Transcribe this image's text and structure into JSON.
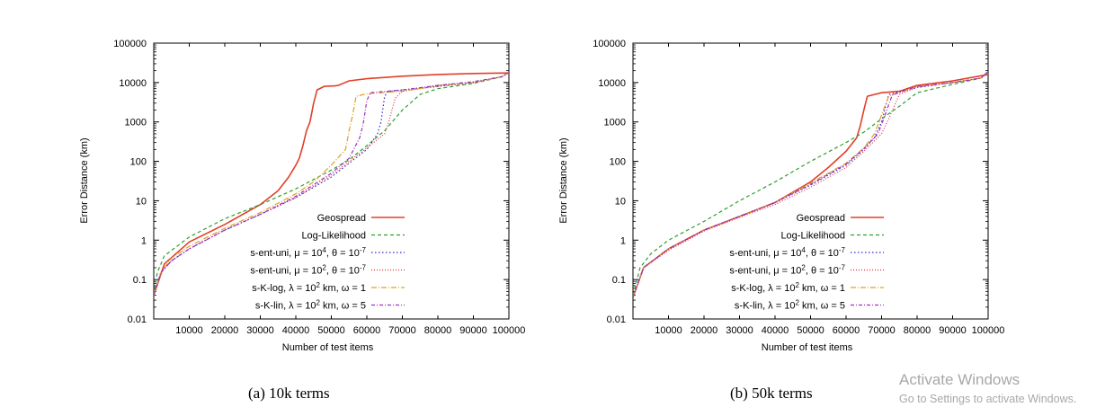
{
  "chart_data": [
    {
      "type": "line",
      "caption": "(a)  10k terms",
      "xlabel": "Number of test items",
      "ylabel": "Error Distance (km)",
      "xlim": [
        0,
        100000
      ],
      "ylim": [
        0.01,
        100000
      ],
      "y_scale": "log",
      "x_ticks": [
        "10000",
        "20000",
        "30000",
        "40000",
        "50000",
        "60000",
        "70000",
        "80000",
        "90000",
        "100000"
      ],
      "y_ticks": [
        "0.01",
        "0.1",
        "1",
        "10",
        "100",
        "1000",
        "10000",
        "100000"
      ],
      "legend_position": "bottom-right",
      "series": [
        {
          "name": "Geospread",
          "color": "#e0402a",
          "dash": "solid",
          "points": [
            [
              0,
              0.04
            ],
            [
              3000,
              0.25
            ],
            [
              10000,
              0.9
            ],
            [
              20000,
              2.5
            ],
            [
              30000,
              8
            ],
            [
              35000,
              18
            ],
            [
              38000,
              40
            ],
            [
              40000,
              80
            ],
            [
              41000,
              120
            ],
            [
              42000,
              250
            ],
            [
              43000,
              600
            ],
            [
              44000,
              1000
            ],
            [
              45000,
              3000
            ],
            [
              46000,
              6500
            ],
            [
              48000,
              8000
            ],
            [
              51000,
              8200
            ],
            [
              52000,
              8500
            ],
            [
              55000,
              11000
            ],
            [
              60000,
              12500
            ],
            [
              70000,
              14500
            ],
            [
              80000,
              16000
            ],
            [
              90000,
              17000
            ],
            [
              100000,
              17500
            ],
            [
              100000,
              18000
            ]
          ]
        },
        {
          "name": "Log-Likelihood",
          "color": "#2ca02c",
          "dash": "4,3",
          "points": [
            [
              0,
              0.04
            ],
            [
              1000,
              0.15
            ],
            [
              3000,
              0.4
            ],
            [
              10000,
              1.2
            ],
            [
              20000,
              3.5
            ],
            [
              30000,
              8
            ],
            [
              40000,
              20
            ],
            [
              50000,
              60
            ],
            [
              55000,
              110
            ],
            [
              60000,
              250
            ],
            [
              65000,
              600
            ],
            [
              70000,
              2000
            ],
            [
              75000,
              5000
            ],
            [
              80000,
              7000
            ],
            [
              90000,
              9500
            ],
            [
              98000,
              14000
            ],
            [
              100000,
              18000
            ]
          ]
        },
        {
          "name": "s-ent-uni, μ = 10^4,  θ = 10^-7",
          "color": "#2a2ad0",
          "dash": "1.5,2.5",
          "points": [
            [
              0,
              0.04
            ],
            [
              2000,
              0.15
            ],
            [
              5000,
              0.3
            ],
            [
              10000,
              0.6
            ],
            [
              20000,
              1.8
            ],
            [
              30000,
              4.5
            ],
            [
              40000,
              12
            ],
            [
              50000,
              40
            ],
            [
              55000,
              90
            ],
            [
              60000,
              200
            ],
            [
              63000,
              500
            ],
            [
              64000,
              1000
            ],
            [
              65000,
              4500
            ],
            [
              66000,
              6000
            ],
            [
              70000,
              6500
            ],
            [
              80000,
              8000
            ],
            [
              90000,
              10000
            ],
            [
              98000,
              14000
            ],
            [
              100000,
              18000
            ]
          ]
        },
        {
          "name": "s-ent-uni, μ = 10^2,  θ = 10^-7",
          "color": "#e03040",
          "dash": "1,2",
          "points": [
            [
              0,
              0.04
            ],
            [
              2000,
              0.15
            ],
            [
              5000,
              0.3
            ],
            [
              10000,
              0.6
            ],
            [
              20000,
              1.8
            ],
            [
              30000,
              4.5
            ],
            [
              40000,
              12
            ],
            [
              50000,
              45
            ],
            [
              55000,
              100
            ],
            [
              60000,
              220
            ],
            [
              65000,
              500
            ],
            [
              66000,
              900
            ],
            [
              68000,
              4000
            ],
            [
              70000,
              6000
            ],
            [
              80000,
              8000
            ],
            [
              90000,
              10000
            ],
            [
              98000,
              14000
            ],
            [
              100000,
              18000
            ]
          ]
        },
        {
          "name": "s-K-log, λ = 10^2 km, ω = 1",
          "color": "#e0a020",
          "dash": "6,2,1,2",
          "points": [
            [
              0,
              0.04
            ],
            [
              2000,
              0.15
            ],
            [
              5000,
              0.35
            ],
            [
              10000,
              0.7
            ],
            [
              20000,
              2
            ],
            [
              30000,
              5
            ],
            [
              40000,
              15
            ],
            [
              45000,
              30
            ],
            [
              50000,
              80
            ],
            [
              54000,
              200
            ],
            [
              55000,
              600
            ],
            [
              56000,
              1500
            ],
            [
              57000,
              4500
            ],
            [
              60000,
              5200
            ],
            [
              70000,
              6000
            ],
            [
              80000,
              8500
            ],
            [
              90000,
              10000
            ],
            [
              98000,
              14000
            ],
            [
              100000,
              18000
            ]
          ]
        },
        {
          "name": "s-K-lin, λ = 10^2 km, ω = 5",
          "color": "#a030c0",
          "dash": "4,2,1,2",
          "points": [
            [
              0,
              0.04
            ],
            [
              2000,
              0.15
            ],
            [
              5000,
              0.3
            ],
            [
              10000,
              0.6
            ],
            [
              20000,
              1.8
            ],
            [
              30000,
              4.5
            ],
            [
              40000,
              13
            ],
            [
              50000,
              50
            ],
            [
              55000,
              120
            ],
            [
              58000,
              400
            ],
            [
              59000,
              900
            ],
            [
              60000,
              3500
            ],
            [
              61000,
              5500
            ],
            [
              70000,
              6500
            ],
            [
              80000,
              8500
            ],
            [
              90000,
              10500
            ],
            [
              98000,
              14000
            ],
            [
              100000,
              18000
            ]
          ]
        }
      ]
    },
    {
      "type": "line",
      "caption": "(b)  50k terms",
      "xlabel": "Number of test items",
      "ylabel": "Error Distance (km)",
      "xlim": [
        0,
        100000
      ],
      "ylim": [
        0.01,
        100000
      ],
      "y_scale": "log",
      "x_ticks": [
        "10000",
        "20000",
        "30000",
        "40000",
        "50000",
        "60000",
        "70000",
        "80000",
        "90000",
        "100000"
      ],
      "y_ticks": [
        "0.01",
        "0.1",
        "1",
        "10",
        "100",
        "1000",
        "10000",
        "100000"
      ],
      "legend_position": "bottom-right",
      "series": [
        {
          "name": "Geospread",
          "color": "#e0402a",
          "dash": "solid",
          "points": [
            [
              0,
              0.035
            ],
            [
              3000,
              0.2
            ],
            [
              10000,
              0.6
            ],
            [
              20000,
              1.8
            ],
            [
              30000,
              4
            ],
            [
              40000,
              9
            ],
            [
              50000,
              30
            ],
            [
              55000,
              70
            ],
            [
              60000,
              180
            ],
            [
              63000,
              400
            ],
            [
              64000,
              800
            ],
            [
              65000,
              2000
            ],
            [
              66000,
              4500
            ],
            [
              70000,
              5500
            ],
            [
              75000,
              6000
            ],
            [
              80000,
              8500
            ],
            [
              90000,
              11000
            ],
            [
              100000,
              16000
            ],
            [
              100000,
              19000
            ]
          ]
        },
        {
          "name": "Log-Likelihood",
          "color": "#2ca02c",
          "dash": "4,3",
          "points": [
            [
              0,
              0.04
            ],
            [
              2000,
              0.2
            ],
            [
              5000,
              0.45
            ],
            [
              10000,
              1
            ],
            [
              20000,
              3
            ],
            [
              30000,
              10
            ],
            [
              40000,
              30
            ],
            [
              50000,
              100
            ],
            [
              60000,
              300
            ],
            [
              65000,
              550
            ],
            [
              70000,
              1200
            ],
            [
              75000,
              2500
            ],
            [
              80000,
              5500
            ],
            [
              90000,
              9000
            ],
            [
              98000,
              13000
            ],
            [
              100000,
              19000
            ]
          ]
        },
        {
          "name": "s-ent-uni, μ = 10^4,  θ = 10^-7",
          "color": "#2a2ad0",
          "dash": "1.5,2.5",
          "points": [
            [
              0,
              0.035
            ],
            [
              3000,
              0.2
            ],
            [
              10000,
              0.6
            ],
            [
              20000,
              1.8
            ],
            [
              30000,
              4
            ],
            [
              40000,
              9
            ],
            [
              50000,
              25
            ],
            [
              60000,
              80
            ],
            [
              65000,
              200
            ],
            [
              68000,
              400
            ],
            [
              70000,
              1000
            ],
            [
              72000,
              5000
            ],
            [
              80000,
              7500
            ],
            [
              90000,
              10000
            ],
            [
              98000,
              13000
            ],
            [
              100000,
              19000
            ]
          ]
        },
        {
          "name": "s-ent-uni, μ = 10^2,  θ = 10^-7",
          "color": "#e03040",
          "dash": "1,2",
          "points": [
            [
              0,
              0.035
            ],
            [
              3000,
              0.2
            ],
            [
              10000,
              0.55
            ],
            [
              20000,
              1.7
            ],
            [
              30000,
              3.8
            ],
            [
              40000,
              8
            ],
            [
              50000,
              22
            ],
            [
              60000,
              70
            ],
            [
              65000,
              180
            ],
            [
              70000,
              500
            ],
            [
              72000,
              1200
            ],
            [
              75000,
              5000
            ],
            [
              80000,
              7500
            ],
            [
              90000,
              10000
            ],
            [
              98000,
              13000
            ],
            [
              100000,
              19000
            ]
          ]
        },
        {
          "name": "s-K-log, λ = 10^2 km, ω = 1",
          "color": "#e0a020",
          "dash": "6,2,1,2",
          "points": [
            [
              0,
              0.035
            ],
            [
              3000,
              0.2
            ],
            [
              10000,
              0.6
            ],
            [
              20000,
              1.8
            ],
            [
              30000,
              4
            ],
            [
              40000,
              9
            ],
            [
              50000,
              28
            ],
            [
              60000,
              90
            ],
            [
              65000,
              220
            ],
            [
              68000,
              500
            ],
            [
              70000,
              1500
            ],
            [
              72000,
              4500
            ],
            [
              80000,
              8000
            ],
            [
              90000,
              10000
            ],
            [
              98000,
              13000
            ],
            [
              100000,
              19000
            ]
          ]
        },
        {
          "name": "s-K-lin, λ = 10^2 km, ω = 5",
          "color": "#a030c0",
          "dash": "4,2,1,2",
          "points": [
            [
              0,
              0.035
            ],
            [
              3000,
              0.2
            ],
            [
              10000,
              0.6
            ],
            [
              20000,
              1.8
            ],
            [
              30000,
              4
            ],
            [
              40000,
              9
            ],
            [
              50000,
              26
            ],
            [
              60000,
              85
            ],
            [
              65000,
              210
            ],
            [
              69000,
              500
            ],
            [
              71000,
              1500
            ],
            [
              73000,
              4800
            ],
            [
              80000,
              8000
            ],
            [
              90000,
              10000
            ],
            [
              98000,
              13000
            ],
            [
              100000,
              19000
            ]
          ]
        }
      ]
    }
  ],
  "legend_labels": [
    {
      "base": "Geospread",
      "parts": [
        [
          "Geospread",
          ""
        ]
      ]
    },
    {
      "base": "Log-Likelihood",
      "parts": [
        [
          "Log-Likelihood",
          ""
        ]
      ]
    },
    {
      "base": "s-ent-uni",
      "parts": [
        [
          "s-ent-uni, μ = 10",
          ""
        ],
        [
          "4",
          "sup"
        ],
        [
          ",  θ = 10",
          ""
        ],
        [
          "-7",
          "sup"
        ]
      ]
    },
    {
      "base": "s-ent-uni",
      "parts": [
        [
          "s-ent-uni, μ = 10",
          ""
        ],
        [
          "2",
          "sup"
        ],
        [
          ",  θ = 10",
          ""
        ],
        [
          "-7",
          "sup"
        ]
      ]
    },
    {
      "base": "s-K-log",
      "parts": [
        [
          "s-K-log, λ = 10",
          ""
        ],
        [
          "2",
          "sup"
        ],
        [
          " km, ω = 1",
          ""
        ]
      ]
    },
    {
      "base": "s-K-lin",
      "parts": [
        [
          "s-K-lin, λ = 10",
          ""
        ],
        [
          "2",
          "sup"
        ],
        [
          " km, ω = 5",
          ""
        ]
      ]
    }
  ],
  "watermark": {
    "title": "Activate Windows",
    "subtitle": "Go to Settings to activate Windows."
  }
}
